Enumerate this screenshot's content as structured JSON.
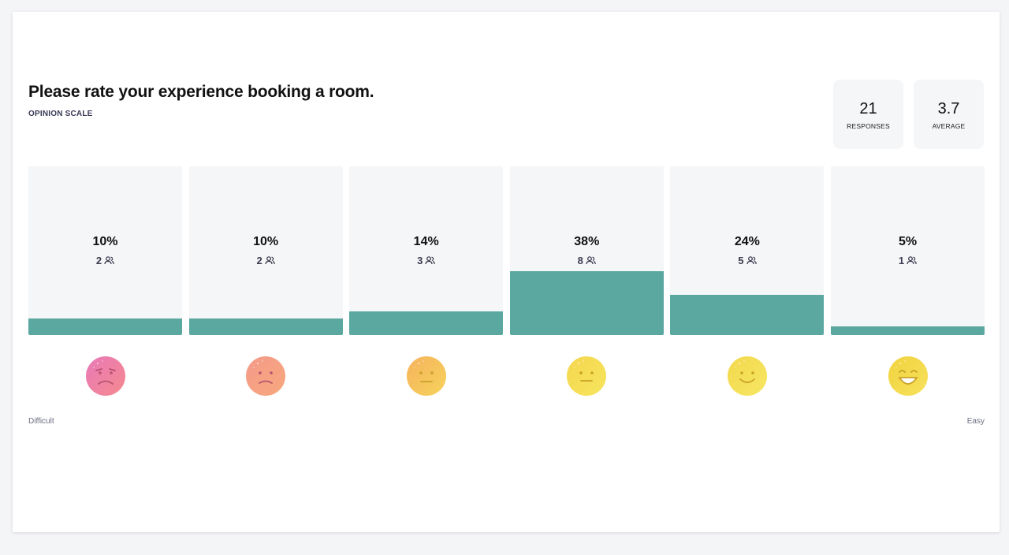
{
  "question": {
    "title": "Please rate your experience booking a room.",
    "type_label": "OPINION SCALE"
  },
  "stats": [
    {
      "value": "21",
      "label": "RESPONSES"
    },
    {
      "value": "3.7",
      "label": "AVERAGE"
    }
  ],
  "scale": {
    "min_label": "Difficult",
    "max_label": "Easy"
  },
  "colors": {
    "bar_fill": "#5ba8a0",
    "column_bg": "#f5f6f8"
  },
  "chart_data": {
    "type": "bar",
    "categories": [
      "1",
      "2",
      "3",
      "4",
      "5",
      "6"
    ],
    "values": [
      10,
      10,
      14,
      38,
      24,
      5
    ],
    "percent_labels": [
      "10%",
      "10%",
      "14%",
      "38%",
      "24%",
      "5%"
    ],
    "counts": [
      2,
      2,
      3,
      8,
      5,
      1
    ],
    "icons": [
      "very-sad-face-icon",
      "sad-face-icon",
      "neutral-face-icon",
      "slight-smile-face-icon",
      "smile-face-icon",
      "grin-face-icon"
    ],
    "count_icon": "people-icon",
    "ylim": [
      0,
      100
    ]
  }
}
